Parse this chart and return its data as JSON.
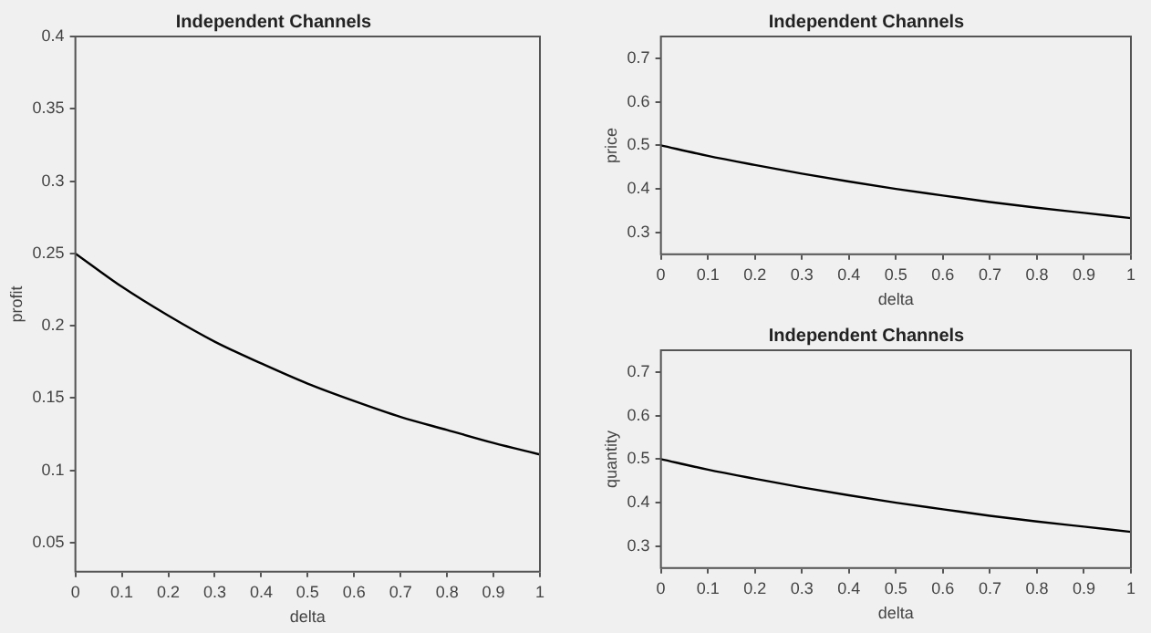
{
  "chart_data": [
    {
      "type": "line",
      "title": "Independent Channels",
      "xlabel": "delta",
      "ylabel": "profit",
      "x": [
        0,
        0.1,
        0.2,
        0.3,
        0.4,
        0.5,
        0.6,
        0.7,
        0.8,
        0.9,
        1
      ],
      "series": [
        {
          "color": "#000000",
          "values": [
            0.25,
            0.227,
            0.207,
            0.189,
            0.174,
            0.16,
            0.148,
            0.137,
            0.128,
            0.119,
            0.111
          ]
        }
      ],
      "xlim": [
        0,
        1
      ],
      "ylim": [
        0.03,
        0.4
      ],
      "xticks": [
        0,
        0.1,
        0.2,
        0.3,
        0.4,
        0.5,
        0.6,
        0.7,
        0.8,
        0.9,
        1
      ],
      "yticks": [
        0.05,
        0.1,
        0.15,
        0.2,
        0.25,
        0.3,
        0.35,
        0.4
      ],
      "grid": false,
      "marker": "none",
      "legend": false
    },
    {
      "type": "line",
      "title": "Independent Channels",
      "xlabel": "delta",
      "ylabel": "price",
      "x": [
        0,
        0.1,
        0.2,
        0.3,
        0.4,
        0.5,
        0.6,
        0.7,
        0.8,
        0.9,
        1
      ],
      "series": [
        {
          "color": "#000000",
          "values": [
            0.5,
            0.476,
            0.455,
            0.435,
            0.417,
            0.4,
            0.385,
            0.37,
            0.357,
            0.345,
            0.333
          ]
        }
      ],
      "xlim": [
        0,
        1
      ],
      "ylim": [
        0.25,
        0.75
      ],
      "xticks": [
        0,
        0.1,
        0.2,
        0.3,
        0.4,
        0.5,
        0.6,
        0.7,
        0.8,
        0.9,
        1
      ],
      "yticks": [
        0.3,
        0.4,
        0.5,
        0.6,
        0.7
      ],
      "grid": false,
      "marker": "none",
      "legend": false
    },
    {
      "type": "line",
      "title": "Independent Channels",
      "xlabel": "delta",
      "ylabel": "quantity",
      "x": [
        0,
        0.1,
        0.2,
        0.3,
        0.4,
        0.5,
        0.6,
        0.7,
        0.8,
        0.9,
        1
      ],
      "series": [
        {
          "color": "#000000",
          "values": [
            0.5,
            0.476,
            0.455,
            0.435,
            0.417,
            0.4,
            0.385,
            0.37,
            0.357,
            0.345,
            0.333
          ]
        }
      ],
      "xlim": [
        0,
        1
      ],
      "ylim": [
        0.25,
        0.75
      ],
      "xticks": [
        0,
        0.1,
        0.2,
        0.3,
        0.4,
        0.5,
        0.6,
        0.7,
        0.8,
        0.9,
        1
      ],
      "yticks": [
        0.3,
        0.4,
        0.5,
        0.6,
        0.7
      ],
      "grid": false,
      "marker": "none",
      "legend": false
    }
  ]
}
